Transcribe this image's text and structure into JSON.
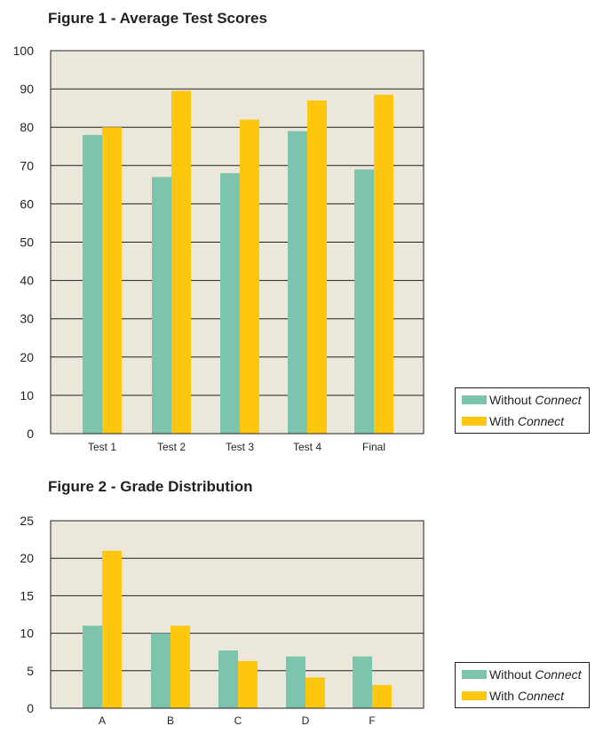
{
  "colors": {
    "without": "#7dc4af",
    "with": "#fdc70f",
    "plot_bg": "#ebe7db",
    "grid": "#231f20"
  },
  "legend": {
    "without_prefix": "Without ",
    "with_prefix": "With ",
    "connect": "Connect"
  },
  "chart_data": [
    {
      "type": "bar",
      "title": "Figure 1 - Average Test Scores",
      "categories": [
        "Test 1",
        "Test 2",
        "Test 3",
        "Test 4",
        "Final"
      ],
      "series": [
        {
          "name": "Without Connect",
          "values": [
            78,
            67,
            68,
            79,
            69
          ]
        },
        {
          "name": "With Connect",
          "values": [
            80,
            89.5,
            82,
            87,
            88.5
          ]
        }
      ],
      "ylim": [
        0,
        100
      ],
      "yticks": [
        0,
        10,
        20,
        30,
        40,
        50,
        60,
        70,
        80,
        90,
        100
      ],
      "grid": true,
      "legend_position": "bottom-right outside"
    },
    {
      "type": "bar",
      "title": "Figure 2 - Grade Distribution",
      "categories": [
        "A",
        "B",
        "C",
        "D",
        "F"
      ],
      "series": [
        {
          "name": "Without Connect",
          "values": [
            11,
            10,
            7.7,
            6.9,
            6.9
          ]
        },
        {
          "name": "With Connect",
          "values": [
            21,
            11,
            6.3,
            4.1,
            3.1
          ]
        }
      ],
      "ylim": [
        0,
        25
      ],
      "yticks": [
        0,
        5,
        10,
        15,
        20,
        25
      ],
      "grid": true,
      "legend_position": "bottom-right outside"
    }
  ]
}
